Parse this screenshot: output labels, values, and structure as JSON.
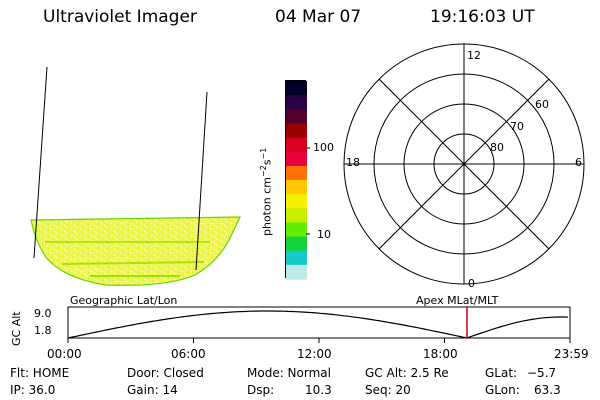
{
  "header": {
    "instrument": "Ultraviolet Imager",
    "date": "04 Mar 07",
    "time": "19:16:03 UT"
  },
  "color_scale": {
    "unit_main": "photon cm",
    "unit_sup1": "−2",
    "unit_s": "s",
    "unit_sup2": "−1",
    "tick_100": "100",
    "tick_10": "10",
    "colors": [
      "#000028",
      "#2b0043",
      "#530030",
      "#9a0000",
      "#d8001a",
      "#e8003a",
      "#ff7200",
      "#ffc800",
      "#f5f000",
      "#c8f000",
      "#62ee00",
      "#14d23d",
      "#18c9c9",
      "#bfe8e8"
    ]
  },
  "polar_plot": {
    "mlt_top": "12",
    "mlt_left": "18",
    "mlt_right": "6",
    "mlt_bottom": "0",
    "lat_60": "60",
    "lat_70": "70",
    "lat_80": "80"
  },
  "orbit_panel": {
    "left_label": "Geographic Lat/Lon",
    "right_label": "Apex MLat/MLT",
    "yaxis_label": "GC Alt",
    "y_top": "9.0",
    "y_bottom": "1.8",
    "x_ticks": [
      "00:00",
      "06:00",
      "12:00",
      "18:00",
      "23:59"
    ],
    "line_color": "#000000",
    "current_time_color": "#cc0000"
  },
  "status": {
    "filter": "Flt: HOME",
    "door": "Door: Closed",
    "mode": "Mode: Normal",
    "gc_alt": "GC Alt: 2.5 Re",
    "glat_label": "GLat:",
    "glat_value": "−5.7",
    "ip": "IP: 36.0",
    "gain": "Gain: 14",
    "dsp_label": "Dsp:",
    "dsp_value": "10.3",
    "seq": "Seq: 20",
    "glon_label": "GLon:",
    "glon_value": "63.3"
  }
}
